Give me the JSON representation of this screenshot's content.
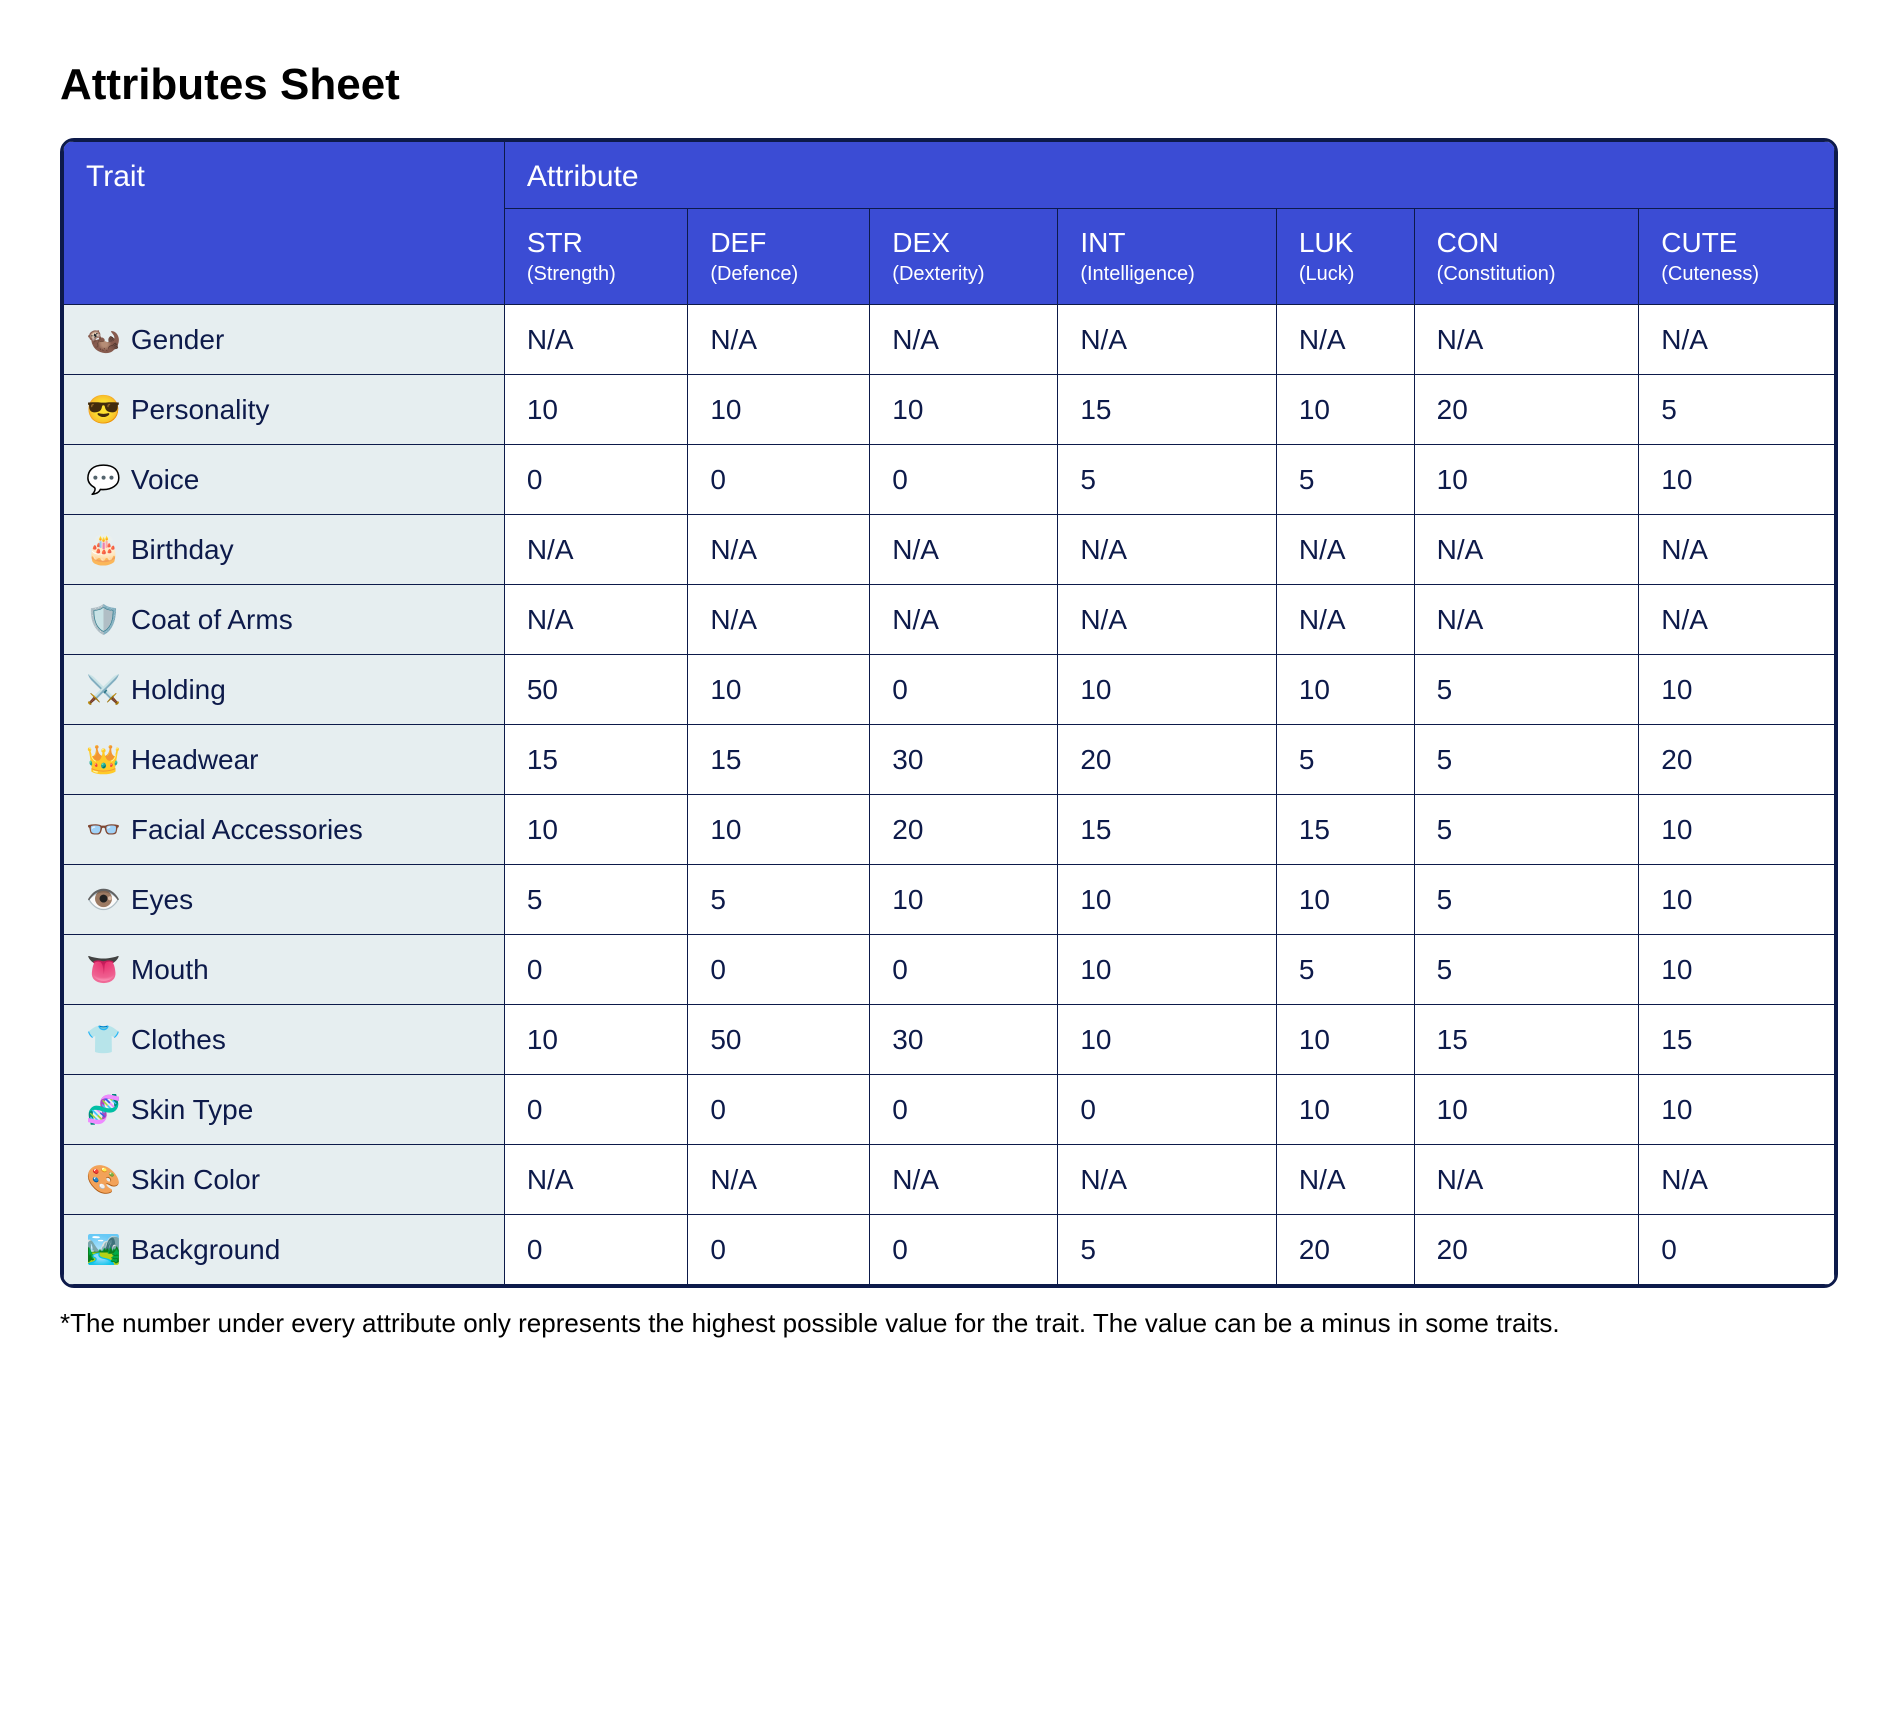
{
  "title": "Attributes Sheet",
  "colors": {
    "header_bg": "#3b4cd4",
    "header_text": "#ffffff",
    "border": "#0d1a4a",
    "trait_bg": "#e6eef0",
    "cell_bg": "#ffffff",
    "body_text": "#0d1a4a"
  },
  "header": {
    "trait_label": "Trait",
    "attribute_group_label": "Attribute",
    "attributes": [
      {
        "abbr": "STR",
        "desc": "(Strength)"
      },
      {
        "abbr": "DEF",
        "desc": "(Defence)"
      },
      {
        "abbr": "DEX",
        "desc": "(Dexterity)"
      },
      {
        "abbr": "INT",
        "desc": "(Intelligence)"
      },
      {
        "abbr": "LUK",
        "desc": "(Luck)"
      },
      {
        "abbr": "CON",
        "desc": "(Constitution)"
      },
      {
        "abbr": "CUTE",
        "desc": "(Cuteness)"
      }
    ]
  },
  "rows": [
    {
      "emoji": "🦦",
      "label": "Gender",
      "values": [
        "N/A",
        "N/A",
        "N/A",
        "N/A",
        "N/A",
        "N/A",
        "N/A"
      ]
    },
    {
      "emoji": "😎",
      "label": "Personality",
      "values": [
        "10",
        "10",
        "10",
        "15",
        "10",
        "20",
        "5"
      ]
    },
    {
      "emoji": "💬",
      "label": "Voice",
      "values": [
        "0",
        "0",
        "0",
        "5",
        "5",
        "10",
        "10"
      ]
    },
    {
      "emoji": "🎂",
      "label": "Birthday",
      "values": [
        "N/A",
        "N/A",
        "N/A",
        "N/A",
        "N/A",
        "N/A",
        "N/A"
      ]
    },
    {
      "emoji": "🛡️",
      "label": "Coat of Arms",
      "values": [
        "N/A",
        "N/A",
        "N/A",
        "N/A",
        "N/A",
        "N/A",
        "N/A"
      ]
    },
    {
      "emoji": "⚔️",
      "label": "Holding",
      "values": [
        "50",
        "10",
        "0",
        "10",
        "10",
        "5",
        "10"
      ]
    },
    {
      "emoji": "👑",
      "label": "Headwear",
      "values": [
        "15",
        "15",
        "30",
        "20",
        "5",
        "5",
        "20"
      ]
    },
    {
      "emoji": "👓",
      "label": "Facial Accessories",
      "values": [
        "10",
        "10",
        "20",
        "15",
        "15",
        "5",
        "10"
      ]
    },
    {
      "emoji": "👁️",
      "label": "Eyes",
      "values": [
        "5",
        "5",
        "10",
        "10",
        "10",
        "5",
        "10"
      ]
    },
    {
      "emoji": "👅",
      "label": "Mouth",
      "values": [
        "0",
        "0",
        "0",
        "10",
        "5",
        "5",
        "10"
      ]
    },
    {
      "emoji": "👕",
      "label": "Clothes",
      "values": [
        "10",
        "50",
        "30",
        "10",
        "10",
        "15",
        "15"
      ]
    },
    {
      "emoji": "🧬",
      "label": "Skin Type",
      "values": [
        "0",
        "0",
        "0",
        "0",
        "10",
        "10",
        "10"
      ]
    },
    {
      "emoji": "🎨",
      "label": "Skin Color",
      "values": [
        "N/A",
        "N/A",
        "N/A",
        "N/A",
        "N/A",
        "N/A",
        "N/A"
      ]
    },
    {
      "emoji": "🏞️",
      "label": "Background",
      "values": [
        "0",
        "0",
        "0",
        "5",
        "20",
        "20",
        "0"
      ]
    }
  ],
  "footnote": "*The number under every attribute only represents the highest possible value for the trait. The value can be a minus in some traits."
}
